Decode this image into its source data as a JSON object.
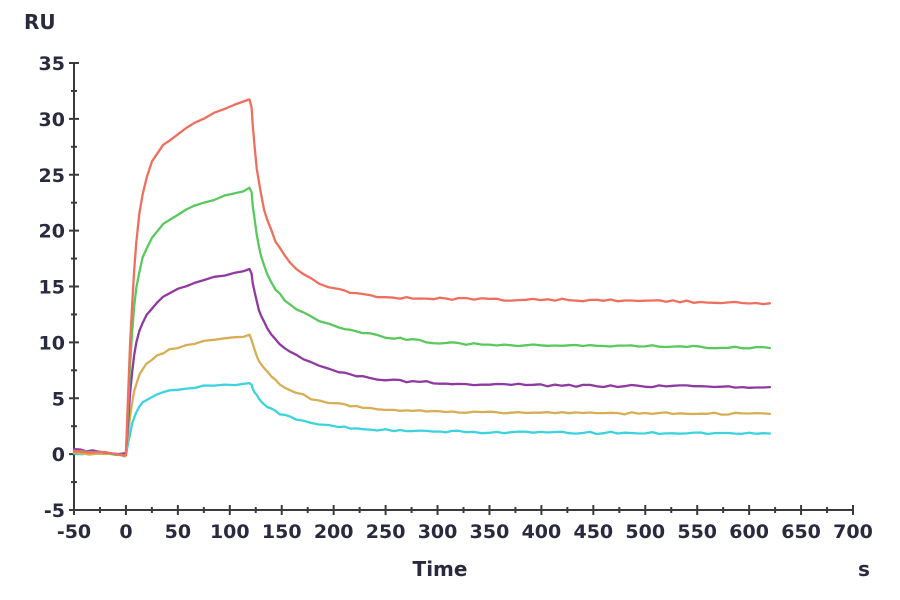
{
  "figure": {
    "background": "#ffffff"
  },
  "chart_data": {
    "type": "line",
    "ylabel": "RU",
    "xlabel": "Time",
    "x_unit": "s",
    "xlim": [
      -50,
      700
    ],
    "ylim": [
      -5,
      35
    ],
    "x_major_ticks": [
      -50,
      0,
      50,
      100,
      150,
      200,
      250,
      300,
      350,
      400,
      450,
      500,
      550,
      600,
      650,
      700
    ],
    "x_minor_step": 25,
    "y_major_ticks": [
      -5,
      0,
      5,
      10,
      15,
      20,
      25,
      30,
      35
    ],
    "y_minor_step": 2.5,
    "grid": false,
    "legend_position": "none",
    "axis_color": "#3a3a3a",
    "tick_label_color": "#2a2a3e",
    "noise_ru": 0.1,
    "series": [
      {
        "name": "red",
        "color": "#EF6F5E",
        "peak_ru": 31.8,
        "end_ru": 13.5,
        "points": [
          [
            -50,
            0.3
          ],
          [
            -35,
            0.2
          ],
          [
            -20,
            0.1
          ],
          [
            -10,
            0.05
          ],
          [
            -5,
            -0.1
          ],
          [
            -2,
            -0.2
          ],
          [
            0,
            -0.1
          ],
          [
            2,
            5
          ],
          [
            4,
            10
          ],
          [
            6,
            13.5
          ],
          [
            8,
            16.5
          ],
          [
            10,
            19
          ],
          [
            13,
            21.5
          ],
          [
            16,
            23.2
          ],
          [
            20,
            24.8
          ],
          [
            25,
            26.1
          ],
          [
            30,
            26.9
          ],
          [
            36,
            27.6
          ],
          [
            42,
            28.1
          ],
          [
            50,
            28.7
          ],
          [
            58,
            29.2
          ],
          [
            66,
            29.6
          ],
          [
            75,
            30.1
          ],
          [
            85,
            30.5
          ],
          [
            95,
            30.9
          ],
          [
            105,
            31.3
          ],
          [
            113,
            31.5
          ],
          [
            119,
            31.8
          ],
          [
            121,
            31
          ],
          [
            122,
            29.5
          ],
          [
            124,
            27.5
          ],
          [
            126,
            25.5
          ],
          [
            128,
            24.3
          ],
          [
            130,
            23.3
          ],
          [
            133,
            21.9
          ],
          [
            136,
            21.0
          ],
          [
            140,
            20.0
          ],
          [
            144,
            19.1
          ],
          [
            148,
            18.4
          ],
          [
            153,
            17.7
          ],
          [
            158,
            17.1
          ],
          [
            164,
            16.6
          ],
          [
            171,
            16.1
          ],
          [
            178,
            15.7
          ],
          [
            186,
            15.3
          ],
          [
            195,
            15.0
          ],
          [
            205,
            14.7
          ],
          [
            216,
            14.45
          ],
          [
            228,
            14.25
          ],
          [
            242,
            14.1
          ],
          [
            258,
            14.0
          ],
          [
            276,
            13.95
          ],
          [
            296,
            13.9
          ],
          [
            320,
            13.9
          ],
          [
            350,
            13.85
          ],
          [
            385,
            13.8
          ],
          [
            420,
            13.8
          ],
          [
            460,
            13.75
          ],
          [
            500,
            13.7
          ],
          [
            540,
            13.65
          ],
          [
            580,
            13.6
          ],
          [
            620,
            13.5
          ]
        ]
      },
      {
        "name": "green",
        "color": "#59C95E",
        "peak_ru": 23.9,
        "end_ru": 9.5,
        "points": [
          [
            -50,
            0.2
          ],
          [
            -35,
            0.15
          ],
          [
            -20,
            0.1
          ],
          [
            -10,
            0.0
          ],
          [
            -5,
            -0.1
          ],
          [
            -2,
            -0.15
          ],
          [
            0,
            -0.05
          ],
          [
            2,
            4
          ],
          [
            4,
            8
          ],
          [
            6,
            11
          ],
          [
            8,
            13.2
          ],
          [
            10,
            14.8
          ],
          [
            13,
            16.4
          ],
          [
            16,
            17.5
          ],
          [
            20,
            18.5
          ],
          [
            25,
            19.4
          ],
          [
            30,
            20.0
          ],
          [
            36,
            20.6
          ],
          [
            42,
            21.0
          ],
          [
            50,
            21.5
          ],
          [
            58,
            21.9
          ],
          [
            66,
            22.2
          ],
          [
            75,
            22.5
          ],
          [
            85,
            22.8
          ],
          [
            95,
            23.1
          ],
          [
            105,
            23.4
          ],
          [
            113,
            23.6
          ],
          [
            119,
            23.9
          ],
          [
            121,
            23.4
          ],
          [
            122,
            22.3
          ],
          [
            124,
            20.9
          ],
          [
            126,
            19.6
          ],
          [
            128,
            18.6
          ],
          [
            130,
            17.8
          ],
          [
            133,
            16.9
          ],
          [
            136,
            16.2
          ],
          [
            140,
            15.4
          ],
          [
            144,
            14.8
          ],
          [
            148,
            14.3
          ],
          [
            153,
            13.8
          ],
          [
            158,
            13.4
          ],
          [
            164,
            13.0
          ],
          [
            171,
            12.6
          ],
          [
            178,
            12.3
          ],
          [
            186,
            12.0
          ],
          [
            195,
            11.7
          ],
          [
            205,
            11.4
          ],
          [
            216,
            11.1
          ],
          [
            228,
            10.85
          ],
          [
            242,
            10.6
          ],
          [
            258,
            10.4
          ],
          [
            276,
            10.2
          ],
          [
            296,
            10.0
          ],
          [
            320,
            9.9
          ],
          [
            350,
            9.8
          ],
          [
            385,
            9.75
          ],
          [
            420,
            9.7
          ],
          [
            460,
            9.7
          ],
          [
            500,
            9.65
          ],
          [
            540,
            9.6
          ],
          [
            580,
            9.55
          ],
          [
            620,
            9.5
          ]
        ]
      },
      {
        "name": "purple",
        "color": "#8F3AA0",
        "peak_ru": 16.5,
        "end_ru": 6.0,
        "points": [
          [
            -50,
            0.45
          ],
          [
            -38,
            0.35
          ],
          [
            -26,
            0.25
          ],
          [
            -16,
            0.15
          ],
          [
            -8,
            0.05
          ],
          [
            -3,
            0.0
          ],
          [
            0,
            0.05
          ],
          [
            2,
            2.8
          ],
          [
            4,
            5.4
          ],
          [
            6,
            7.3
          ],
          [
            8,
            8.8
          ],
          [
            10,
            9.9
          ],
          [
            13,
            11.0
          ],
          [
            16,
            11.8
          ],
          [
            20,
            12.5
          ],
          [
            25,
            13.1
          ],
          [
            30,
            13.6
          ],
          [
            36,
            14.0
          ],
          [
            42,
            14.35
          ],
          [
            50,
            14.75
          ],
          [
            58,
            15.05
          ],
          [
            66,
            15.3
          ],
          [
            75,
            15.55
          ],
          [
            85,
            15.8
          ],
          [
            95,
            16.0
          ],
          [
            105,
            16.2
          ],
          [
            113,
            16.35
          ],
          [
            119,
            16.5
          ],
          [
            121,
            16.1
          ],
          [
            122,
            15.4
          ],
          [
            124,
            14.4
          ],
          [
            126,
            13.6
          ],
          [
            128,
            12.9
          ],
          [
            130,
            12.4
          ],
          [
            133,
            11.8
          ],
          [
            136,
            11.3
          ],
          [
            140,
            10.7
          ],
          [
            144,
            10.25
          ],
          [
            148,
            9.9
          ],
          [
            153,
            9.5
          ],
          [
            158,
            9.15
          ],
          [
            164,
            8.8
          ],
          [
            171,
            8.45
          ],
          [
            178,
            8.15
          ],
          [
            186,
            7.85
          ],
          [
            195,
            7.6
          ],
          [
            205,
            7.35
          ],
          [
            216,
            7.1
          ],
          [
            228,
            6.9
          ],
          [
            242,
            6.75
          ],
          [
            258,
            6.6
          ],
          [
            276,
            6.5
          ],
          [
            296,
            6.4
          ],
          [
            320,
            6.3
          ],
          [
            350,
            6.25
          ],
          [
            385,
            6.2
          ],
          [
            420,
            6.15
          ],
          [
            460,
            6.1
          ],
          [
            500,
            6.1
          ],
          [
            540,
            6.1
          ],
          [
            580,
            6.05
          ],
          [
            620,
            6.0
          ]
        ]
      },
      {
        "name": "gold",
        "color": "#D8AE55",
        "peak_ru": 10.6,
        "end_ru": 3.6,
        "points": [
          [
            -50,
            0.1
          ],
          [
            -35,
            0.05
          ],
          [
            -20,
            0.0
          ],
          [
            -10,
            0.0
          ],
          [
            -5,
            -0.1
          ],
          [
            -2,
            -0.15
          ],
          [
            0,
            -0.05
          ],
          [
            2,
            1.8
          ],
          [
            4,
            3.4
          ],
          [
            6,
            4.7
          ],
          [
            8,
            5.6
          ],
          [
            10,
            6.3
          ],
          [
            13,
            7.1
          ],
          [
            16,
            7.6
          ],
          [
            20,
            8.1
          ],
          [
            25,
            8.5
          ],
          [
            30,
            8.8
          ],
          [
            36,
            9.1
          ],
          [
            42,
            9.3
          ],
          [
            50,
            9.55
          ],
          [
            58,
            9.75
          ],
          [
            66,
            9.9
          ],
          [
            75,
            10.05
          ],
          [
            85,
            10.2
          ],
          [
            95,
            10.35
          ],
          [
            105,
            10.45
          ],
          [
            113,
            10.55
          ],
          [
            119,
            10.6
          ],
          [
            121,
            10.3
          ],
          [
            122,
            9.9
          ],
          [
            124,
            9.3
          ],
          [
            126,
            8.8
          ],
          [
            128,
            8.4
          ],
          [
            130,
            8.05
          ],
          [
            133,
            7.6
          ],
          [
            136,
            7.3
          ],
          [
            140,
            6.9
          ],
          [
            144,
            6.6
          ],
          [
            148,
            6.3
          ],
          [
            153,
            6.0
          ],
          [
            158,
            5.75
          ],
          [
            164,
            5.5
          ],
          [
            171,
            5.25
          ],
          [
            178,
            5.0
          ],
          [
            186,
            4.8
          ],
          [
            195,
            4.6
          ],
          [
            205,
            4.45
          ],
          [
            216,
            4.3
          ],
          [
            228,
            4.15
          ],
          [
            242,
            4.0
          ],
          [
            258,
            3.9
          ],
          [
            276,
            3.85
          ],
          [
            296,
            3.8
          ],
          [
            320,
            3.75
          ],
          [
            350,
            3.7
          ],
          [
            385,
            3.7
          ],
          [
            420,
            3.7
          ],
          [
            460,
            3.65
          ],
          [
            500,
            3.65
          ],
          [
            540,
            3.65
          ],
          [
            580,
            3.6
          ],
          [
            620,
            3.6
          ]
        ]
      },
      {
        "name": "cyan",
        "color": "#3DD3DE",
        "peak_ru": 6.35,
        "end_ru": 1.85,
        "points": [
          [
            -50,
            0.05
          ],
          [
            -35,
            0.0
          ],
          [
            -20,
            0.0
          ],
          [
            -10,
            -0.05
          ],
          [
            -5,
            -0.1
          ],
          [
            -2,
            -0.15
          ],
          [
            0,
            -0.05
          ],
          [
            2,
            1.0
          ],
          [
            4,
            1.9
          ],
          [
            6,
            2.7
          ],
          [
            8,
            3.3
          ],
          [
            10,
            3.75
          ],
          [
            13,
            4.2
          ],
          [
            16,
            4.55
          ],
          [
            20,
            4.85
          ],
          [
            25,
            5.1
          ],
          [
            30,
            5.3
          ],
          [
            36,
            5.5
          ],
          [
            42,
            5.65
          ],
          [
            50,
            5.8
          ],
          [
            58,
            5.9
          ],
          [
            66,
            6.0
          ],
          [
            75,
            6.05
          ],
          [
            85,
            6.15
          ],
          [
            95,
            6.2
          ],
          [
            105,
            6.25
          ],
          [
            113,
            6.3
          ],
          [
            119,
            6.35
          ],
          [
            121,
            6.15
          ],
          [
            122,
            5.9
          ],
          [
            124,
            5.55
          ],
          [
            126,
            5.25
          ],
          [
            128,
            5.0
          ],
          [
            130,
            4.8
          ],
          [
            133,
            4.55
          ],
          [
            136,
            4.3
          ],
          [
            140,
            4.05
          ],
          [
            144,
            3.85
          ],
          [
            148,
            3.65
          ],
          [
            153,
            3.45
          ],
          [
            158,
            3.3
          ],
          [
            164,
            3.1
          ],
          [
            171,
            2.95
          ],
          [
            178,
            2.8
          ],
          [
            186,
            2.65
          ],
          [
            195,
            2.55
          ],
          [
            205,
            2.45
          ],
          [
            216,
            2.35
          ],
          [
            228,
            2.25
          ],
          [
            242,
            2.2
          ],
          [
            258,
            2.1
          ],
          [
            276,
            2.05
          ],
          [
            296,
            2.0
          ],
          [
            320,
            2.0
          ],
          [
            350,
            1.95
          ],
          [
            385,
            1.95
          ],
          [
            420,
            1.9
          ],
          [
            460,
            1.9
          ],
          [
            500,
            1.9
          ],
          [
            540,
            1.9
          ],
          [
            580,
            1.85
          ],
          [
            620,
            1.85
          ]
        ]
      }
    ]
  }
}
